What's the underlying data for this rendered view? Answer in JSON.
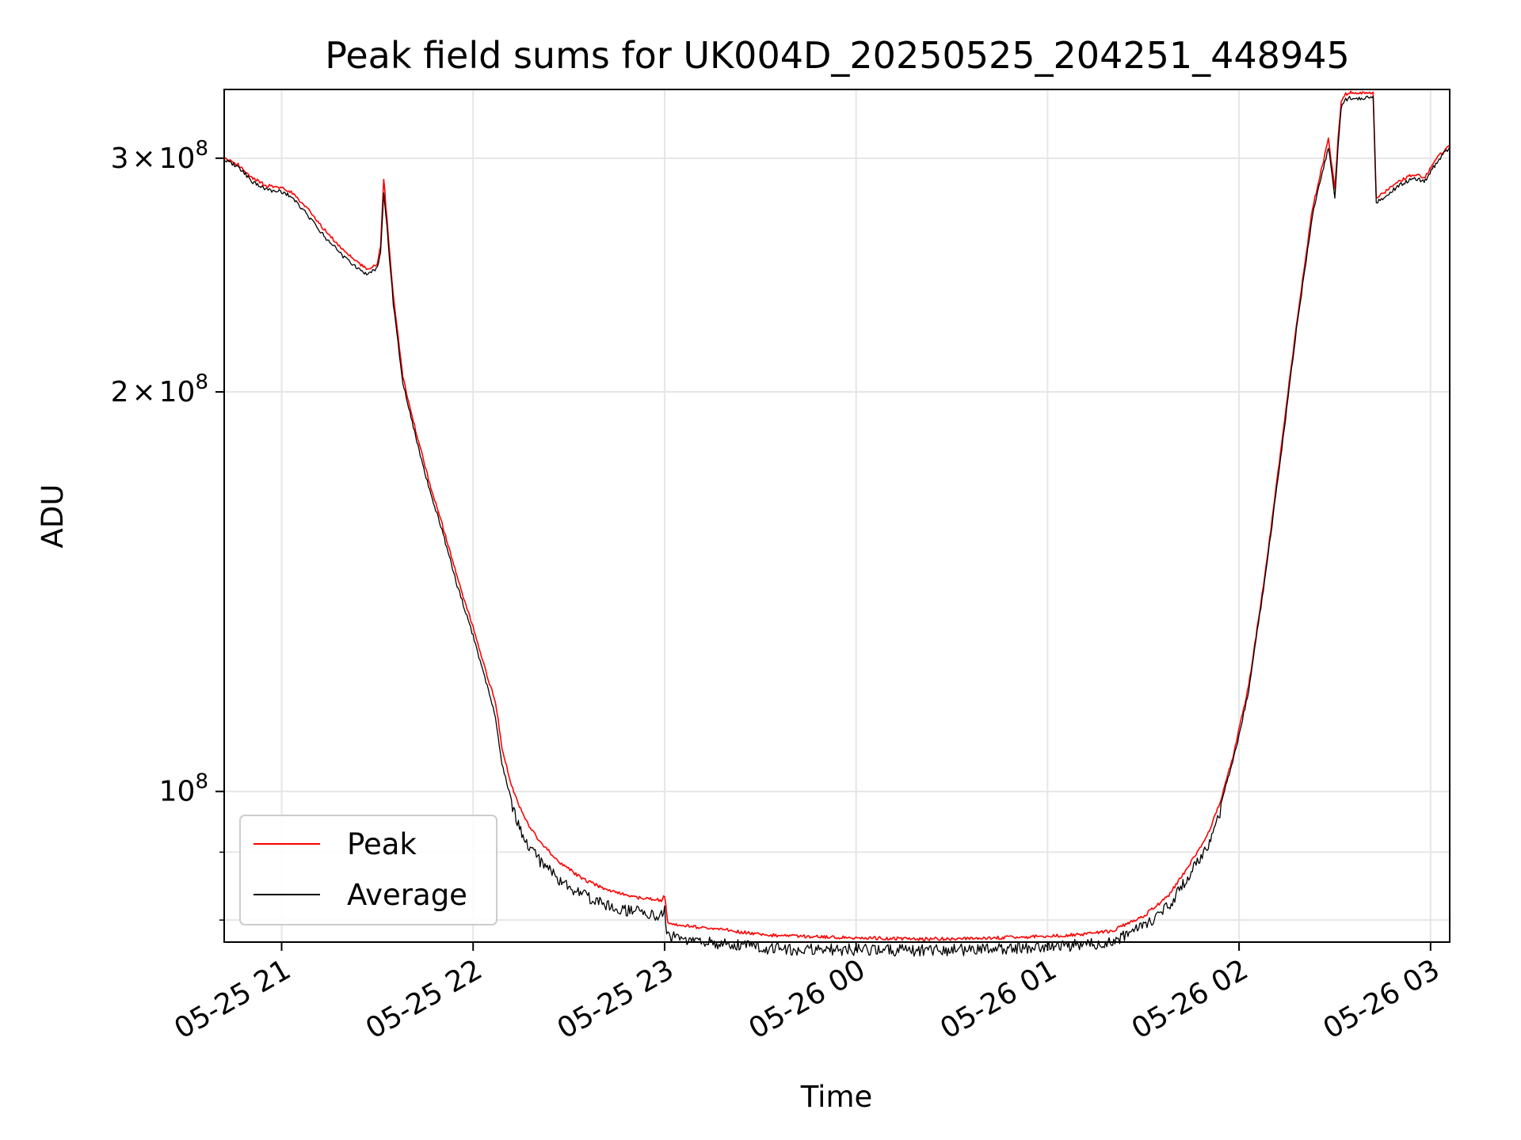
{
  "chart_data": {
    "type": "line",
    "title": "Peak field sums for UK004D_20250525_204251_448945",
    "xlabel": "Time",
    "ylabel": "ADU",
    "x_scale": "time",
    "y_scale": "log",
    "xlim": [
      "2025-05-25 20:42",
      "2025-05-26 03:06"
    ],
    "ylim": [
      77000000,
      338000000
    ],
    "grid": true,
    "legend_position": "lower left",
    "x_ticks": [
      {
        "value": "2025-05-25 21:00",
        "label": "05-25 21"
      },
      {
        "value": "2025-05-25 22:00",
        "label": "05-25 22"
      },
      {
        "value": "2025-05-25 23:00",
        "label": "05-25 23"
      },
      {
        "value": "2025-05-26 00:00",
        "label": "05-26 00"
      },
      {
        "value": "2025-05-26 01:00",
        "label": "05-26 01"
      },
      {
        "value": "2025-05-26 02:00",
        "label": "05-26 02"
      },
      {
        "value": "2025-05-26 03:00",
        "label": "05-26 03"
      }
    ],
    "y_major_ticks": [
      {
        "value": 100000000,
        "base": "10",
        "exp": "8"
      },
      {
        "value": 200000000,
        "mant": "2",
        "times": "×",
        "base": "10",
        "exp": "8"
      },
      {
        "value": 300000000,
        "mant": "3",
        "times": "×",
        "base": "10",
        "exp": "8"
      }
    ],
    "y_minor_ticks": [
      80000000,
      90000000
    ],
    "x": [
      "2025-05-25 20:42",
      "2025-05-25 20:46",
      "2025-05-25 20:51",
      "2025-05-25 20:55",
      "2025-05-25 21:00",
      "2025-05-25 21:03",
      "2025-05-25 21:08",
      "2025-05-25 21:14",
      "2025-05-25 21:20",
      "2025-05-25 21:27",
      "2025-05-25 21:30",
      "2025-05-25 21:31",
      "2025-05-25 21:32",
      "2025-05-25 21:33",
      "2025-05-25 21:35",
      "2025-05-25 21:38",
      "2025-05-25 21:42",
      "2025-05-25 21:46",
      "2025-05-25 21:51",
      "2025-05-25 21:55",
      "2025-05-25 22:00",
      "2025-05-25 22:04",
      "2025-05-25 22:07",
      "2025-05-25 22:09",
      "2025-05-25 22:12",
      "2025-05-25 22:16",
      "2025-05-25 22:21",
      "2025-05-25 22:27",
      "2025-05-25 22:34",
      "2025-05-25 22:42",
      "2025-05-25 22:51",
      "2025-05-25 22:59",
      "2025-05-25 23:00",
      "2025-05-25 23:01",
      "2025-05-25 23:10",
      "2025-05-25 23:20",
      "2025-05-25 23:30",
      "2025-05-25 23:40",
      "2025-05-26 00:00",
      "2025-05-26 00:20",
      "2025-05-26 00:40",
      "2025-05-26 01:00",
      "2025-05-26 01:10",
      "2025-05-26 01:20",
      "2025-05-26 01:30",
      "2025-05-26 01:38",
      "2025-05-26 01:45",
      "2025-05-26 01:50",
      "2025-05-26 01:54",
      "2025-05-26 01:58",
      "2025-05-26 02:03",
      "2025-05-26 02:08",
      "2025-05-26 02:13",
      "2025-05-26 02:18",
      "2025-05-26 02:23",
      "2025-05-26 02:28",
      "2025-05-26 02:30",
      "2025-05-26 02:31",
      "2025-05-26 02:32",
      "2025-05-26 02:33",
      "2025-05-26 02:35",
      "2025-05-26 02:38",
      "2025-05-26 02:42",
      "2025-05-26 02:43",
      "2025-05-26 02:45",
      "2025-05-26 02:50",
      "2025-05-26 02:55",
      "2025-05-26 02:58",
      "2025-05-26 03:02",
      "2025-05-26 03:06"
    ],
    "series": [
      {
        "name": "Peak",
        "color": "#ff0000",
        "values": [
          300000000,
          297000000,
          290000000,
          286000000,
          285000000,
          283000000,
          275000000,
          264000000,
          255000000,
          247000000,
          250000000,
          258000000,
          290000000,
          270000000,
          236000000,
          205000000,
          187000000,
          172000000,
          157000000,
          145000000,
          133000000,
          123000000,
          117000000,
          108000000,
          101000000,
          95500000,
          91500000,
          88500000,
          86000000,
          84300000,
          83200000,
          82800000,
          83500000,
          79500000,
          79000000,
          78600000,
          78000000,
          77800000,
          77600000,
          77400000,
          77500000,
          77800000,
          78000000,
          78500000,
          80500000,
          83500000,
          88500000,
          92500000,
          98000000,
          106000000,
          120000000,
          145000000,
          180000000,
          225000000,
          275000000,
          310000000,
          285000000,
          310000000,
          330000000,
          335000000,
          336000000,
          336000000,
          336000000,
          280000000,
          282000000,
          288000000,
          292000000,
          290000000,
          300000000,
          307000000
        ]
      },
      {
        "name": "Average",
        "color": "#000000",
        "values": [
          299000000,
          296000000,
          288000000,
          284000000,
          283000000,
          281000000,
          272000000,
          261000000,
          252000000,
          245000000,
          248000000,
          255000000,
          282000000,
          266000000,
          233000000,
          203000000,
          185000000,
          170000000,
          155000000,
          143000000,
          131000000,
          121000000,
          114000000,
          105000000,
          98500000,
          93000000,
          89500000,
          86500000,
          84500000,
          82800000,
          82000000,
          81500000,
          82200000,
          78500000,
          78000000,
          77500000,
          77000000,
          76800000,
          76800000,
          76700000,
          76800000,
          77200000,
          77400000,
          77800000,
          79800000,
          82800000,
          87800000,
          91800000,
          97500000,
          105000000,
          119000000,
          144000000,
          178000000,
          223000000,
          272000000,
          306000000,
          280000000,
          306000000,
          327000000,
          332000000,
          333000000,
          333000000,
          333000000,
          278000000,
          280000000,
          286000000,
          290000000,
          288000000,
          298000000,
          306000000
        ]
      }
    ]
  }
}
